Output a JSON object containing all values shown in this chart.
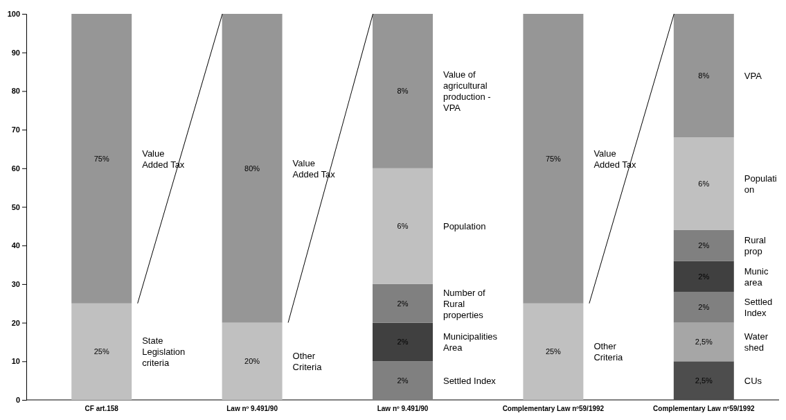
{
  "chart_data": {
    "type": "bar",
    "stacked": true,
    "categories": [
      "CF art.158",
      "Law nº 9.491/90",
      "Law nº 9.491/90",
      "Complementary Law nº59/1992",
      "Complementary Law nº59/1992"
    ],
    "ylim": [
      0,
      100
    ],
    "yticks": [
      0,
      10,
      20,
      30,
      40,
      50,
      60,
      70,
      80,
      90,
      100
    ],
    "series": [
      {
        "values": [
          25,
          20,
          10,
          25,
          10
        ],
        "colors": [
          "#c0c0c0",
          "#c0c0c0",
          "#808080",
          "#c0c0c0",
          "#4d4d4d"
        ],
        "value_labels": [
          "25%",
          "20%",
          null,
          "25%",
          null
        ]
      },
      {
        "values": [
          75,
          80,
          10,
          75,
          10
        ],
        "colors": [
          "#969696",
          "#969696",
          "#404040",
          "#969696",
          "#a6a6a6"
        ],
        "value_labels": [
          "75%",
          "80%",
          null,
          "75%",
          null
        ]
      },
      {
        "values": [
          null,
          null,
          10,
          null,
          8
        ],
        "colors": [
          null,
          null,
          "#808080",
          null,
          "#808080"
        ]
      },
      {
        "values": [
          null,
          null,
          30,
          null,
          8
        ],
        "colors": [
          null,
          null,
          "#c0c0c0",
          null,
          "#404040"
        ]
      },
      {
        "values": [
          null,
          null,
          40,
          null,
          8
        ],
        "colors": [
          null,
          null,
          "#969696",
          null,
          "#808080"
        ]
      },
      {
        "values": [
          null,
          null,
          null,
          null,
          24
        ],
        "colors": [
          null,
          null,
          null,
          null,
          "#c0c0c0"
        ]
      },
      {
        "values": [
          null,
          null,
          null,
          null,
          32
        ],
        "colors": [
          null,
          null,
          null,
          null,
          "#969696"
        ]
      }
    ],
    "annotations": [
      "Value\nAdded Tax",
      "State\nLegislation\ncriteria",
      "Value\nAdded Tax",
      "Other\nCriteria",
      "Value of\nagricultural\nproduction -\nVPA",
      "Population",
      "Number of\nRural\nproperties",
      "Municipalities\nArea",
      "Settled Index",
      "Value\nAdded Tax",
      "Other\nCriteria",
      "VPA",
      "Populati\non",
      "Rural\nprop",
      "Munic\narea",
      "Settled\nIndex",
      "Water\nshed",
      "CUs",
      "8%",
      "6%",
      "2%",
      "2%",
      "2%",
      "8%",
      "6%",
      "2%",
      "2%",
      "2%",
      "2,5%",
      "2,5%"
    ]
  }
}
